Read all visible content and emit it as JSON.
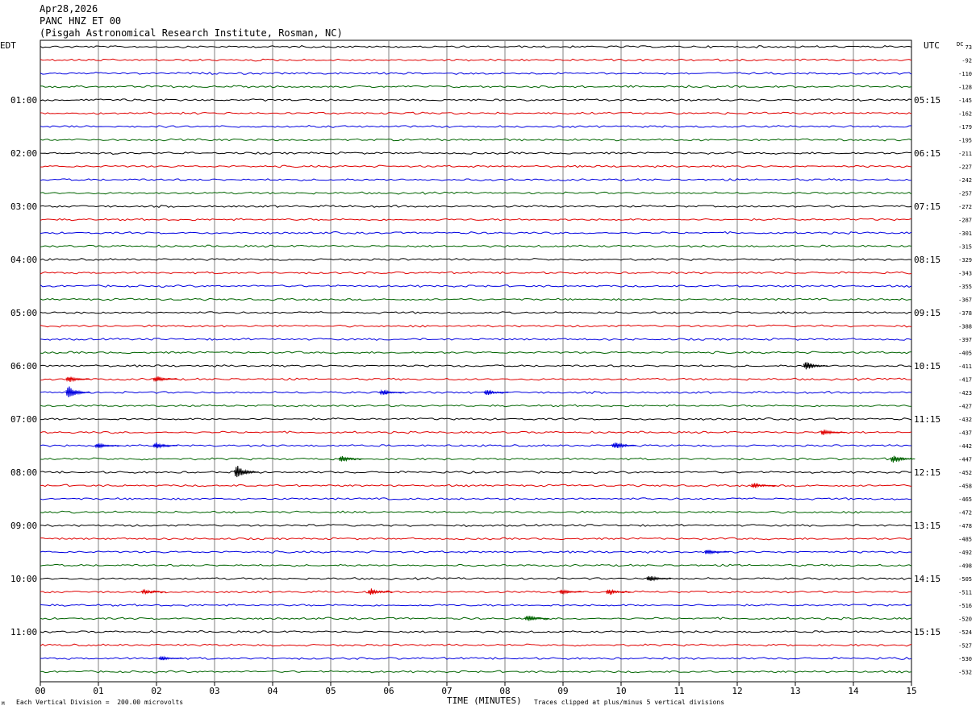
{
  "header": {
    "date": "Apr28,2026",
    "station": "PANC HNZ ET 00",
    "location": "(Pisgah Astronomical Research Institute, Rosman, NC)"
  },
  "chart_data": {
    "type": "line",
    "title": "PANC HNZ ET 00",
    "xlabel": "TIME (MINUTES)",
    "xlim": [
      0,
      15
    ],
    "x_ticks": [
      "00",
      "01",
      "02",
      "03",
      "04",
      "05",
      "06",
      "07",
      "08",
      "09",
      "10",
      "11",
      "12",
      "13",
      "14",
      "15"
    ],
    "left_axis_label": "EDT",
    "right_axis_label": "UTC",
    "dc_label": "DC",
    "colors": [
      "#000000",
      "#e00000",
      "#0000e0",
      "#006400"
    ],
    "left_hour_labels": [
      {
        "row": 4,
        "label": "01:00"
      },
      {
        "row": 8,
        "label": "02:00"
      },
      {
        "row": 12,
        "label": "03:00"
      },
      {
        "row": 16,
        "label": "04:00"
      },
      {
        "row": 20,
        "label": "05:00"
      },
      {
        "row": 24,
        "label": "06:00"
      },
      {
        "row": 28,
        "label": "07:00"
      },
      {
        "row": 32,
        "label": "08:00"
      },
      {
        "row": 36,
        "label": "09:00"
      },
      {
        "row": 40,
        "label": "10:00"
      },
      {
        "row": 44,
        "label": "11:00"
      }
    ],
    "right_hour_labels": [
      {
        "row": 4,
        "label": "05:15"
      },
      {
        "row": 8,
        "label": "06:15"
      },
      {
        "row": 12,
        "label": "07:15"
      },
      {
        "row": 16,
        "label": "08:15"
      },
      {
        "row": 20,
        "label": "09:15"
      },
      {
        "row": 24,
        "label": "10:15"
      },
      {
        "row": 28,
        "label": "11:15"
      },
      {
        "row": 32,
        "label": "12:15"
      },
      {
        "row": 36,
        "label": "13:15"
      },
      {
        "row": 40,
        "label": "14:15"
      },
      {
        "row": 44,
        "label": "15:15"
      }
    ],
    "dc_offsets": [
      "73",
      "-92",
      "-110",
      "-128",
      "-145",
      "-162",
      "-179",
      "-195",
      "-211",
      "-227",
      "-242",
      "-257",
      "-272",
      "-287",
      "-301",
      "-315",
      "-329",
      "-343",
      "-355",
      "-367",
      "-378",
      "-388",
      "-397",
      "-405",
      "-411",
      "-417",
      "-423",
      "-427",
      "-432",
      "-437",
      "-442",
      "-447",
      "-452",
      "-458",
      "-465",
      "-472",
      "-478",
      "-485",
      "-492",
      "-498",
      "-505",
      "-511",
      "-516",
      "-520",
      "-524",
      "-527",
      "-530",
      "-532"
    ],
    "events": [
      {
        "row": 24,
        "minute": 13.2,
        "amplitude": 0.6
      },
      {
        "row": 25,
        "minute": 0.5,
        "amplitude": 0.4
      },
      {
        "row": 25,
        "minute": 2.0,
        "amplitude": 0.45
      },
      {
        "row": 26,
        "minute": 0.5,
        "amplitude": 0.8
      },
      {
        "row": 26,
        "minute": 5.9,
        "amplitude": 0.35
      },
      {
        "row": 26,
        "minute": 7.7,
        "amplitude": 0.35
      },
      {
        "row": 29,
        "minute": 13.5,
        "amplitude": 0.4
      },
      {
        "row": 30,
        "minute": 1.0,
        "amplitude": 0.3
      },
      {
        "row": 30,
        "minute": 2.0,
        "amplitude": 0.4
      },
      {
        "row": 30,
        "minute": 9.9,
        "amplitude": 0.5
      },
      {
        "row": 31,
        "minute": 5.2,
        "amplitude": 0.4
      },
      {
        "row": 31,
        "minute": 14.7,
        "amplitude": 0.5
      },
      {
        "row": 32,
        "minute": 3.4,
        "amplitude": 0.9
      },
      {
        "row": 33,
        "minute": 12.3,
        "amplitude": 0.35
      },
      {
        "row": 38,
        "minute": 11.5,
        "amplitude": 0.35
      },
      {
        "row": 40,
        "minute": 10.5,
        "amplitude": 0.4
      },
      {
        "row": 41,
        "minute": 5.7,
        "amplitude": 0.45
      },
      {
        "row": 41,
        "minute": 9.0,
        "amplitude": 0.35
      },
      {
        "row": 41,
        "minute": 9.8,
        "amplitude": 0.4
      },
      {
        "row": 41,
        "minute": 1.8,
        "amplitude": 0.3
      },
      {
        "row": 43,
        "minute": 8.4,
        "amplitude": 0.45
      },
      {
        "row": 46,
        "minute": 2.1,
        "amplitude": 0.25
      }
    ]
  },
  "footer": {
    "scale_note": "Each Vertical Division =  200.00 microvolts",
    "time_label": "TIME (MINUTES)",
    "clip_note": "Traces clipped at plus/minus 5 vertical divisions",
    "corner_mark": "M"
  }
}
